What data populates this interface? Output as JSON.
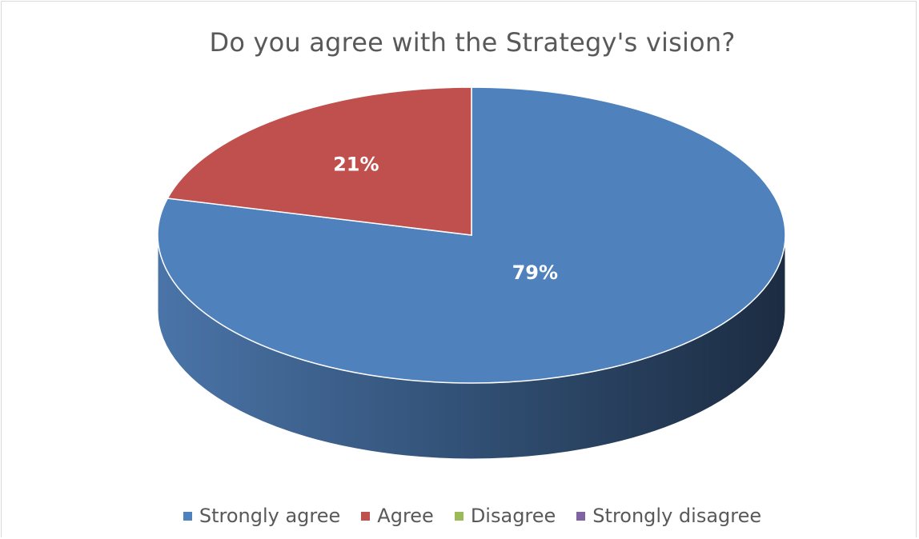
{
  "chart_data": {
    "type": "pie",
    "title": "Do you agree with the Strategy's vision?",
    "categories": [
      "Strongly agree",
      "Agree",
      "Disagree",
      "Strongly disagree"
    ],
    "values": [
      79,
      21,
      0,
      0
    ],
    "unit": "%",
    "data_labels": [
      "79%",
      "21%",
      "",
      ""
    ],
    "colors": [
      "#4f81bd",
      "#c0504d",
      "#9bbb59",
      "#8064a2"
    ],
    "legend_position": "bottom",
    "style": "3d"
  }
}
